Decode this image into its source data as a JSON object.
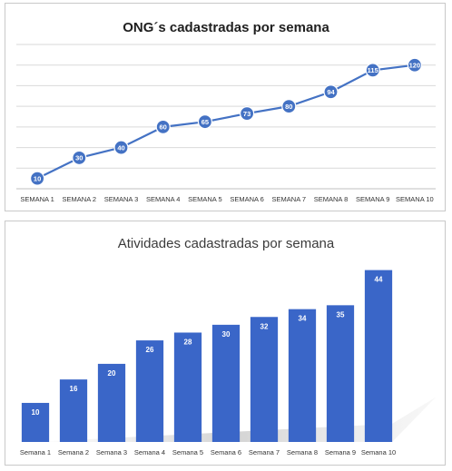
{
  "chart_data": [
    {
      "type": "line",
      "title": "ONG´s cadastradas por semana",
      "categories": [
        "SEMANA 1",
        "SEMANA 2",
        "SEMANA 3",
        "SEMANA 4",
        "SEMANA 5",
        "SEMANA 6",
        "SEMANA 7",
        "SEMANA 8",
        "SEMANA 9",
        "SEMANA 10"
      ],
      "values": [
        10,
        30,
        40,
        60,
        65,
        73,
        80,
        94,
        115,
        120
      ],
      "xlabel": "",
      "ylabel": "",
      "ylim": [
        0,
        140
      ],
      "grid": true,
      "color": "#4472c4"
    },
    {
      "type": "bar",
      "title": "Atividades cadastradas por semana",
      "categories": [
        "Semana 1",
        "Semana 2",
        "Semana 3",
        "Semana 4",
        "Semana 5",
        "Semana 6",
        "Semana 7",
        "Semana 8",
        "Semana 9",
        "Semana 10"
      ],
      "values": [
        10,
        16,
        20,
        26,
        28,
        30,
        32,
        34,
        35,
        44
      ],
      "xlabel": "",
      "ylabel": "",
      "ylim": [
        0,
        46
      ],
      "grid": false,
      "color": "#3a66c8"
    }
  ]
}
